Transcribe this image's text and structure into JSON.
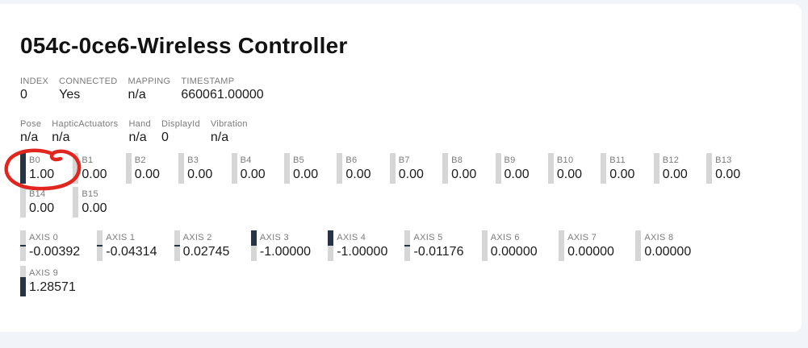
{
  "title": "054c-0ce6-Wireless Controller",
  "info_rows": [
    [
      {
        "label": "INDEX",
        "value": "0"
      },
      {
        "label": "CONNECTED",
        "value": "Yes"
      },
      {
        "label": "MAPPING",
        "value": "n/a"
      },
      {
        "label": "TIMESTAMP",
        "value": "660061.00000"
      }
    ],
    [
      {
        "label": "Pose",
        "value": "n/a"
      },
      {
        "label": "HapticActuators",
        "value": "n/a"
      },
      {
        "label": "Hand",
        "value": "n/a"
      },
      {
        "label": "DisplayId",
        "value": "0"
      },
      {
        "label": "Vibration",
        "value": "n/a"
      }
    ]
  ],
  "buttons": [
    {
      "label": "B0",
      "value": "1.00",
      "v": 1
    },
    {
      "label": "B1",
      "value": "0.00",
      "v": 0
    },
    {
      "label": "B2",
      "value": "0.00",
      "v": 0
    },
    {
      "label": "B3",
      "value": "0.00",
      "v": 0
    },
    {
      "label": "B4",
      "value": "0.00",
      "v": 0
    },
    {
      "label": "B5",
      "value": "0.00",
      "v": 0
    },
    {
      "label": "B6",
      "value": "0.00",
      "v": 0
    },
    {
      "label": "B7",
      "value": "0.00",
      "v": 0
    },
    {
      "label": "B8",
      "value": "0.00",
      "v": 0
    },
    {
      "label": "B9",
      "value": "0.00",
      "v": 0
    },
    {
      "label": "B10",
      "value": "0.00",
      "v": 0
    },
    {
      "label": "B11",
      "value": "0.00",
      "v": 0
    },
    {
      "label": "B12",
      "value": "0.00",
      "v": 0
    },
    {
      "label": "B13",
      "value": "0.00",
      "v": 0
    },
    {
      "label": "B14",
      "value": "0.00",
      "v": 0
    },
    {
      "label": "B15",
      "value": "0.00",
      "v": 0
    }
  ],
  "axes": [
    {
      "label": "AXIS 0",
      "value": "-0.00392",
      "v": -0.00392
    },
    {
      "label": "AXIS 1",
      "value": "-0.04314",
      "v": -0.04314
    },
    {
      "label": "AXIS 2",
      "value": "0.02745",
      "v": 0.02745
    },
    {
      "label": "AXIS 3",
      "value": "-1.00000",
      "v": -1.0
    },
    {
      "label": "AXIS 4",
      "value": "-1.00000",
      "v": -1.0
    },
    {
      "label": "AXIS 5",
      "value": "-0.01176",
      "v": -0.01176
    },
    {
      "label": "AXIS 6",
      "value": "0.00000",
      "v": 0
    },
    {
      "label": "AXIS 7",
      "value": "0.00000",
      "v": 0
    },
    {
      "label": "AXIS 8",
      "value": "0.00000",
      "v": 0
    },
    {
      "label": "AXIS 9",
      "value": "1.28571",
      "v": 1.28571
    }
  ],
  "annotation": {
    "shape": "hand-drawn-ellipse",
    "around": "B0",
    "color": "#e0261e"
  },
  "colors": {
    "background": "#f1f5f9",
    "card": "#ffffff",
    "label": "#7a7a7a",
    "value": "#1b1b1b",
    "track": "#d6d6d6",
    "fill": "#273447",
    "annotation": "#e0261e"
  }
}
